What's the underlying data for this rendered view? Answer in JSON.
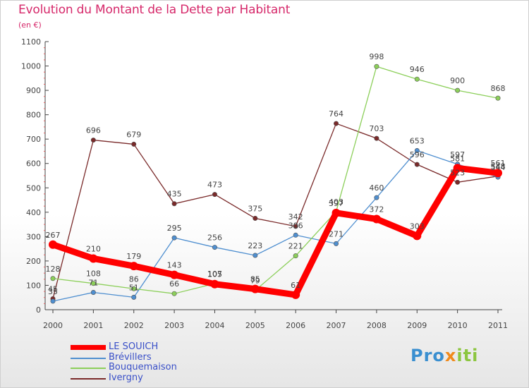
{
  "title": "Evolution du Montant de la Dette par Habitant",
  "subtitle": "(en €)",
  "chart_data": {
    "type": "line",
    "title": "Evolution du Montant de la Dette par Habitant",
    "subtitle": "(en €)",
    "x": [
      "2000",
      "2001",
      "2002",
      "2003",
      "2004",
      "2005",
      "2006",
      "2007",
      "2008",
      "2009",
      "2010",
      "2011"
    ],
    "ylim": [
      0,
      1100
    ],
    "yticks": [
      0,
      100,
      200,
      300,
      400,
      500,
      600,
      700,
      800,
      900,
      1000,
      1100
    ],
    "grid": false,
    "legend_position": "bottom-left",
    "series": [
      {
        "name": "LE SOUICH",
        "color": "#ff0000",
        "values": [
          267,
          210,
          179,
          143,
          105,
          85,
          61,
          397,
          372,
          303,
          581,
          561
        ],
        "labels": [
          "267",
          "210",
          "179",
          "143",
          "105",
          "85",
          "61",
          "397",
          "372",
          "303",
          "581",
          "561"
        ]
      },
      {
        "name": "Brévillers",
        "color": "#4f8fd0",
        "values": [
          35,
          71,
          51,
          295,
          256,
          223,
          306,
          271,
          460,
          653,
          597,
          544
        ],
        "labels": [
          "35",
          "71",
          "51",
          "295",
          "256",
          "223",
          "306",
          "271",
          "460",
          "653",
          "597",
          "544"
        ]
      },
      {
        "name": "Bouquemaison",
        "color": "#8ccf5a",
        "values": [
          128,
          108,
          86,
          66,
          107,
          79,
          221,
          403,
          998,
          946,
          900,
          868
        ],
        "labels": [
          "128",
          "108",
          "86",
          "66",
          "107",
          "79",
          "221",
          "403",
          "998",
          "946",
          "900",
          "868"
        ]
      },
      {
        "name": "Ivergny",
        "color": "#7a2a2a",
        "values": [
          45,
          696,
          679,
          435,
          473,
          375,
          342,
          764,
          703,
          596,
          523,
          548
        ],
        "labels": [
          "45",
          "696",
          "679",
          "435",
          "473",
          "375",
          "342",
          "764",
          "703",
          "596",
          "523",
          "548"
        ]
      }
    ]
  },
  "logo": {
    "part1": "Pro",
    "part2": "x",
    "part3": "iti"
  }
}
